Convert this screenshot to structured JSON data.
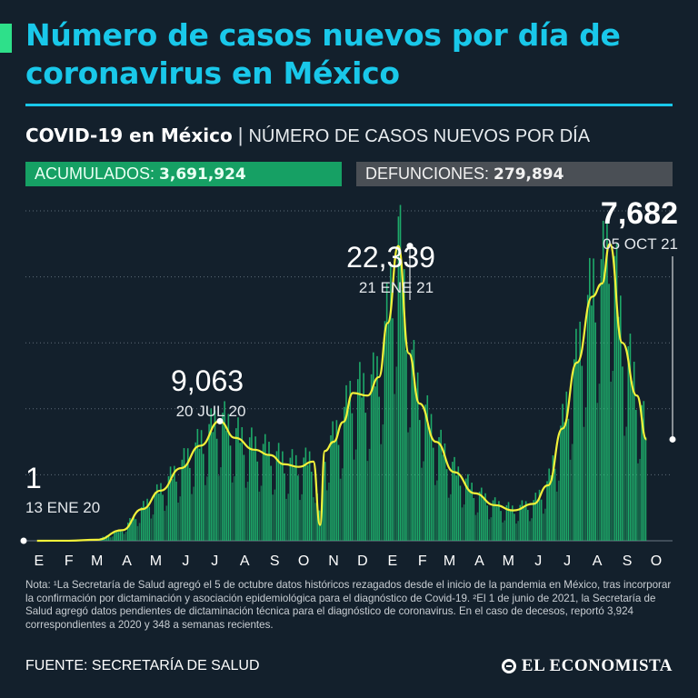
{
  "headline": "Número de casos nuevos por día de coronavirus en México",
  "subtitle": {
    "bold": "COVID-19 en México",
    "separator": "|",
    "rest": "NÚMERO DE CASOS NUEVOS POR DÍA"
  },
  "stats": {
    "cumulative_label": "ACUMULADOS:",
    "cumulative_value": "3,691,924",
    "deaths_label": "DEFUNCIONES:",
    "deaths_value": "279,894"
  },
  "note": "Nota: ¹La Secretaría de Salud agregó el 5 de octubre datos históricos rezagados desde el inicio de la pandemia en México, tras incorporar la confirmación por dictaminación y asociación epidemiológica para el diagnóstico de Covid-19. ²El 1 de junio de 2021, la Secretaría de Salud agregó datos pendientes de dictaminación técnica para el diagnóstico de coronavirus. En el caso de decesos, reportó 3,924 correspondientes a 2020 y 348 a semanas recientes.",
  "source": "FUENTE: SECRETARÍA DE SALUD",
  "logo": "EL ECONOMISTA",
  "colors": {
    "background": "#13202c",
    "headline": "#19c8ea",
    "bars": "#1fb870",
    "smooth_line": "#f2f13a",
    "accumulated_box": "#16a064",
    "deaths_box": "#4a4f55"
  },
  "chart_data": {
    "type": "bar",
    "ylim": [
      0,
      25000
    ],
    "grid": true,
    "x_tick_labels": [
      "E",
      "F",
      "M",
      "A",
      "M",
      "J",
      "J",
      "A",
      "S",
      "O",
      "N",
      "D",
      "E",
      "F",
      "M",
      "A",
      "M",
      "J",
      "J",
      "A",
      "S",
      "O"
    ],
    "annotations": [
      {
        "value": "1",
        "date": "13 ENE 20"
      },
      {
        "value": "9,063",
        "date": "20 JUL 20"
      },
      {
        "value": "22,339",
        "date": "21 ENE 21"
      },
      {
        "value": "7,682",
        "date": "05 OCT 21"
      }
    ],
    "series": [
      {
        "type": "line",
        "x": [
          "2020-01-13",
          "2020-02-15",
          "2020-03-15",
          "2020-04-10",
          "2020-05-01",
          "2020-05-20",
          "2020-06-10",
          "2020-06-30",
          "2020-07-20",
          "2020-08-05",
          "2020-08-25",
          "2020-09-10",
          "2020-09-25",
          "2020-10-10",
          "2020-10-25",
          "2020-11-01",
          "2020-11-06",
          "2020-11-15",
          "2020-11-25",
          "2020-12-05",
          "2020-12-20",
          "2021-01-01",
          "2021-01-10",
          "2021-01-21",
          "2021-02-01",
          "2021-02-12",
          "2021-03-01",
          "2021-03-20",
          "2021-04-10",
          "2021-05-01",
          "2021-05-20",
          "2021-06-10",
          "2021-06-25",
          "2021-07-10",
          "2021-07-25",
          "2021-08-10",
          "2021-08-20",
          "2021-08-28",
          "2021-09-10",
          "2021-09-25",
          "2021-10-05"
        ],
        "y": [
          1,
          5,
          80,
          800,
          2400,
          3800,
          5500,
          7200,
          9063,
          7800,
          6900,
          6500,
          5800,
          5600,
          6000,
          1200,
          6800,
          7500,
          9000,
          11200,
          11000,
          12400,
          16500,
          22339,
          14200,
          10400,
          7500,
          5200,
          3600,
          2700,
          2300,
          2800,
          4200,
          8500,
          13500,
          18500,
          19500,
          22500,
          15000,
          11000,
          7682
        ]
      }
    ]
  }
}
